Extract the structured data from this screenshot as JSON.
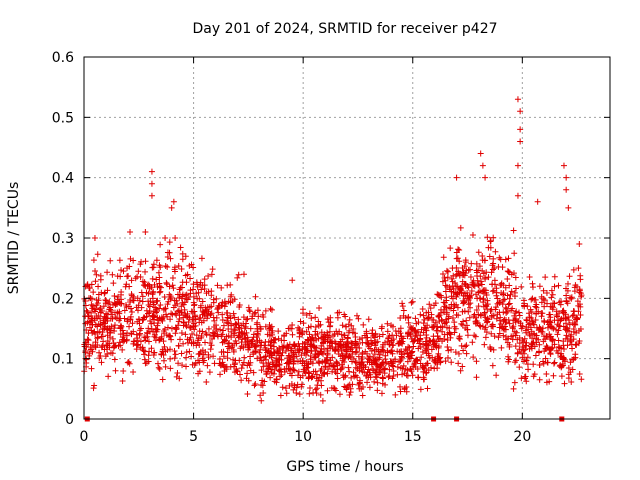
{
  "chart_data": {
    "type": "scatter",
    "title": "Day 201 of 2024, SRMTID for receiver p427",
    "xlabel": "GPS time / hours",
    "ylabel": "SRMTID / TECUs",
    "xlim": [
      0,
      24
    ],
    "ylim": [
      0,
      0.6
    ],
    "x_ticks": [
      0,
      5,
      10,
      15,
      20
    ],
    "y_ticks": [
      0,
      0.1,
      0.2,
      0.3,
      0.4,
      0.5,
      0.6
    ],
    "x_tick_labels": [
      "0",
      "5",
      "10",
      "15",
      "20"
    ],
    "y_tick_labels": [
      "0",
      "0.1",
      "0.2",
      "0.3",
      "0.4",
      "0.5",
      "0.6"
    ],
    "grid": true,
    "marker": "+",
    "marker_color": "#e00000",
    "x_extent": [
      0,
      22.7
    ],
    "trend_profile": [
      [
        0.0,
        0.13
      ],
      [
        0.5,
        0.17
      ],
      [
        1.0,
        0.15
      ],
      [
        2.0,
        0.18
      ],
      [
        3.0,
        0.17
      ],
      [
        4.0,
        0.18
      ],
      [
        5.0,
        0.17
      ],
      [
        6.0,
        0.15
      ],
      [
        7.0,
        0.14
      ],
      [
        8.0,
        0.12
      ],
      [
        9.0,
        0.1
      ],
      [
        10.0,
        0.11
      ],
      [
        11.0,
        0.11
      ],
      [
        12.0,
        0.11
      ],
      [
        13.0,
        0.1
      ],
      [
        14.0,
        0.11
      ],
      [
        15.0,
        0.12
      ],
      [
        16.0,
        0.13
      ],
      [
        16.5,
        0.18
      ],
      [
        17.5,
        0.21
      ],
      [
        18.5,
        0.2
      ],
      [
        19.0,
        0.19
      ],
      [
        19.6,
        0.18
      ],
      [
        20.0,
        0.14
      ],
      [
        21.0,
        0.15
      ],
      [
        22.0,
        0.14
      ],
      [
        22.7,
        0.16
      ]
    ],
    "notable_points": [
      {
        "x": 3.1,
        "y": 0.41
      },
      {
        "x": 3.1,
        "y": 0.39
      },
      {
        "x": 3.1,
        "y": 0.37
      },
      {
        "x": 4.1,
        "y": 0.36
      },
      {
        "x": 4.0,
        "y": 0.35
      },
      {
        "x": 3.7,
        "y": 0.3
      },
      {
        "x": 0.5,
        "y": 0.3
      },
      {
        "x": 2.1,
        "y": 0.31
      },
      {
        "x": 2.8,
        "y": 0.31
      },
      {
        "x": 7.3,
        "y": 0.24
      },
      {
        "x": 9.5,
        "y": 0.23
      },
      {
        "x": 10.9,
        "y": 0.03
      },
      {
        "x": 10.8,
        "y": 0.04
      },
      {
        "x": 17.0,
        "y": 0.4
      },
      {
        "x": 18.1,
        "y": 0.44
      },
      {
        "x": 18.2,
        "y": 0.42
      },
      {
        "x": 18.3,
        "y": 0.4
      },
      {
        "x": 19.8,
        "y": 0.53
      },
      {
        "x": 19.9,
        "y": 0.51
      },
      {
        "x": 19.9,
        "y": 0.48
      },
      {
        "x": 19.9,
        "y": 0.46
      },
      {
        "x": 19.8,
        "y": 0.42
      },
      {
        "x": 19.8,
        "y": 0.37
      },
      {
        "x": 20.7,
        "y": 0.36
      },
      {
        "x": 21.9,
        "y": 0.42
      },
      {
        "x": 22.0,
        "y": 0.4
      },
      {
        "x": 22.0,
        "y": 0.38
      },
      {
        "x": 22.1,
        "y": 0.35
      },
      {
        "x": 22.6,
        "y": 0.29
      },
      {
        "x": 19.6,
        "y": 0.05
      }
    ],
    "zero_markers_x": [
      0.15,
      15.95,
      17.0,
      21.8
    ]
  }
}
